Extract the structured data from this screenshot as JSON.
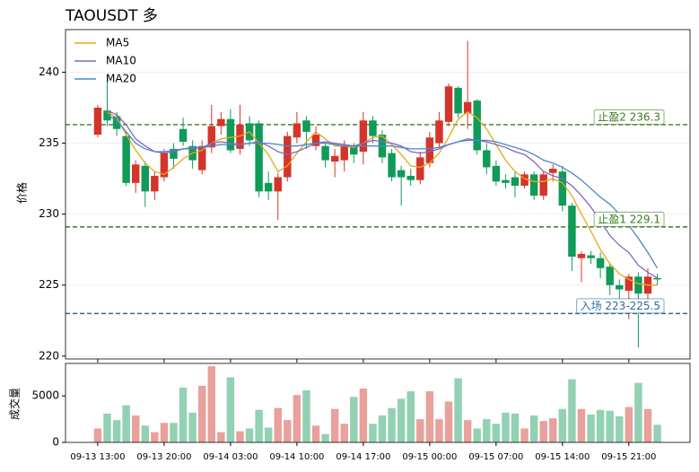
{
  "chart_data": [
    {
      "type": "candlestick",
      "title": "TAOUSDT  多",
      "ylabel": "价格",
      "categories": [
        "09-13 13:00",
        null,
        null,
        null,
        null,
        null,
        null,
        "09-13 20:00",
        null,
        null,
        null,
        null,
        null,
        null,
        "09-14 03:00",
        null,
        null,
        null,
        null,
        null,
        null,
        "09-14 10:00",
        null,
        null,
        null,
        null,
        null,
        null,
        "09-14 17:00",
        null,
        null,
        null,
        null,
        null,
        null,
        "09-15 00:00",
        null,
        null,
        null,
        null,
        null,
        null,
        "09-15 07:00",
        null,
        null,
        null,
        null,
        null,
        null,
        "09-15 14:00",
        null,
        null,
        null,
        null,
        null,
        null,
        "09-15 21:00",
        null,
        null,
        null
      ],
      "open": [
        235.6,
        237.3,
        236.9,
        235.5,
        232.2,
        233.4,
        231.6,
        232.6,
        234.6,
        236.0,
        234.8,
        233.1,
        234.7,
        236.2,
        236.7,
        234.6,
        236.4,
        236.4,
        232.2,
        231.6,
        232.6,
        235.4,
        236.6,
        234.8,
        234.8,
        233.7,
        233.8,
        234.8,
        234.4,
        236.6,
        235.6,
        234.3,
        233.1,
        232.7,
        232.4,
        233.6,
        235.0,
        236.5,
        238.9,
        237.1,
        238.0,
        234.5,
        233.4,
        232.4,
        232.6,
        232.0,
        232.8,
        231.3,
        232.9,
        233.0,
        230.6,
        226.9,
        227.1,
        226.9,
        226.3,
        225.0,
        224.6,
        225.6,
        224.4,
        225.5
      ],
      "high": [
        237.7,
        239.8,
        237.2,
        235.8,
        233.8,
        233.7,
        233.0,
        234.6,
        235.0,
        236.8,
        235.2,
        235.2,
        237.7,
        237.2,
        237.4,
        237.7,
        236.9,
        236.6,
        233.0,
        232.9,
        235.8,
        237.2,
        236.9,
        236.2,
        235.1,
        234.6,
        235.2,
        235.0,
        237.2,
        236.9,
        235.9,
        234.6,
        233.4,
        233.2,
        234.4,
        235.8,
        237.2,
        239.2,
        239.0,
        242.2,
        238.1,
        235.0,
        233.8,
        232.8,
        233.0,
        233.0,
        233.0,
        233.0,
        233.5,
        233.4,
        230.8,
        227.4,
        227.4,
        227.3,
        226.6,
        225.4,
        225.8,
        225.9,
        226.2,
        225.8
      ],
      "low": [
        235.4,
        236.2,
        235.5,
        232.0,
        231.5,
        230.5,
        231.0,
        232.3,
        233.2,
        234.8,
        233.2,
        232.8,
        234.3,
        235.6,
        234.3,
        234.2,
        234.8,
        231.2,
        231.0,
        229.6,
        232.3,
        235.0,
        234.6,
        234.5,
        233.3,
        232.6,
        233.0,
        233.6,
        233.5,
        235.0,
        233.6,
        232.3,
        230.6,
        232.0,
        232.1,
        233.3,
        234.7,
        236.2,
        236.8,
        236.0,
        234.2,
        232.8,
        232.0,
        231.8,
        231.2,
        231.8,
        231.0,
        231.0,
        232.3,
        230.2,
        226.0,
        225.2,
        226.5,
        225.5,
        224.3,
        224.0,
        222.6,
        220.6,
        223.8,
        225.0
      ],
      "close": [
        237.5,
        236.6,
        236.0,
        232.2,
        233.5,
        231.6,
        232.7,
        234.3,
        233.9,
        235.1,
        233.8,
        234.8,
        236.2,
        236.7,
        234.5,
        236.3,
        235.2,
        231.6,
        231.6,
        232.6,
        235.5,
        236.4,
        235.8,
        235.6,
        233.8,
        234.1,
        234.8,
        234.2,
        236.6,
        235.5,
        234.0,
        232.6,
        232.6,
        232.4,
        234.0,
        235.4,
        236.6,
        239.0,
        237.1,
        237.9,
        234.5,
        233.3,
        232.3,
        232.2,
        232.0,
        232.8,
        231.3,
        232.8,
        233.2,
        230.6,
        227.0,
        227.2,
        226.9,
        226.2,
        225.0,
        224.7,
        225.6,
        224.4,
        225.6,
        225.4
      ],
      "up_color": "#d3352c",
      "down_color": "#0f9b58",
      "series": [
        {
          "name": "MA5",
          "color": "#e6a817",
          "values": [
            null,
            237.2,
            236.8,
            235.6,
            234.5,
            233.6,
            233.0,
            232.8,
            233.3,
            233.9,
            234.3,
            234.5,
            235.0,
            235.3,
            235.4,
            235.5,
            235.8,
            235.0,
            234.2,
            233.0,
            233.4,
            234.3,
            235.1,
            235.8,
            235.3,
            234.8,
            234.8,
            234.7,
            235.0,
            235.4,
            235.5,
            234.9,
            234.2,
            233.4,
            233.3,
            233.6,
            234.3,
            235.4,
            236.7,
            237.2,
            236.8,
            236.0,
            234.9,
            233.8,
            233.0,
            232.5,
            232.3,
            232.3,
            232.5,
            232.2,
            231.3,
            230.0,
            228.8,
            227.5,
            226.5,
            225.8,
            225.4,
            225.1,
            225.0,
            225.0
          ]
        },
        {
          "name": "MA10",
          "color": "#8066bf",
          "values": [
            null,
            237.3,
            237.0,
            236.3,
            235.3,
            234.8,
            234.4,
            234.3,
            234.4,
            234.6,
            234.6,
            234.7,
            235.0,
            235.1,
            235.0,
            234.9,
            235.0,
            235.1,
            234.8,
            234.4,
            234.2,
            234.4,
            234.7,
            235.0,
            235.1,
            235.0,
            234.9,
            234.8,
            235.0,
            235.2,
            235.1,
            235.0,
            234.8,
            234.4,
            234.3,
            234.4,
            234.6,
            234.9,
            235.1,
            235.3,
            235.2,
            235.1,
            234.9,
            234.7,
            234.4,
            234.2,
            233.7,
            233.0,
            232.7,
            232.5,
            232.0,
            231.3,
            230.5,
            229.5,
            228.5,
            227.8,
            227.3,
            226.4,
            225.9,
            225.5
          ]
        },
        {
          "name": "MA20",
          "color": "#4a86c8",
          "values": [
            null,
            237.0,
            236.6,
            235.8,
            235.0,
            234.6,
            234.4,
            234.4,
            234.5,
            234.6,
            234.7,
            234.7,
            234.8,
            234.9,
            234.9,
            234.9,
            235.0,
            235.0,
            235.0,
            234.9,
            234.8,
            234.8,
            234.9,
            235.0,
            235.0,
            234.9,
            234.8,
            234.8,
            234.8,
            234.8,
            234.8,
            234.8,
            234.7,
            234.6,
            234.6,
            234.6,
            234.7,
            234.9,
            235.1,
            235.2,
            235.2,
            235.2,
            235.1,
            234.9,
            234.7,
            234.5,
            234.2,
            233.8,
            233.6,
            233.3,
            232.9,
            232.4,
            231.8,
            231.2,
            230.7,
            230.0,
            229.2,
            228.3,
            227.3,
            226.2
          ]
        }
      ],
      "ylim": [
        219.8,
        243
      ],
      "yticks": [
        220,
        225,
        230,
        235,
        240
      ],
      "legend": "upper left",
      "lines": [
        {
          "value": 236.3,
          "label": "止盈2 236.3",
          "color": "#3d7a1f"
        },
        {
          "value": 229.1,
          "label": "止盈1 229.1",
          "color": "#3d7a1f"
        },
        {
          "value": 223,
          "label": "入场 223-225.5",
          "color": "#2e6aa0"
        }
      ]
    },
    {
      "type": "bar",
      "ylabel": "成交量",
      "values": [
        1500,
        3100,
        2400,
        4000,
        2900,
        1800,
        1100,
        2100,
        2100,
        5900,
        3200,
        6100,
        8200,
        1100,
        7000,
        1200,
        1500,
        3500,
        1600,
        3700,
        2400,
        5100,
        5600,
        1800,
        900,
        3600,
        2000,
        4900,
        5800,
        2000,
        2900,
        3700,
        4700,
        5500,
        2500,
        5500,
        2500,
        4400,
        6900,
        2400,
        1500,
        2500,
        2000,
        3200,
        3100,
        1500,
        2900,
        2300,
        2600,
        3600,
        6800,
        3600,
        3000,
        3500,
        3400,
        2800,
        3800,
        6400,
        3600,
        1900
      ],
      "up_color": "#e8a19c",
      "down_color": "#93d1b4",
      "ylim": [
        0,
        8500
      ],
      "yticks": [
        0,
        5000
      ]
    }
  ]
}
